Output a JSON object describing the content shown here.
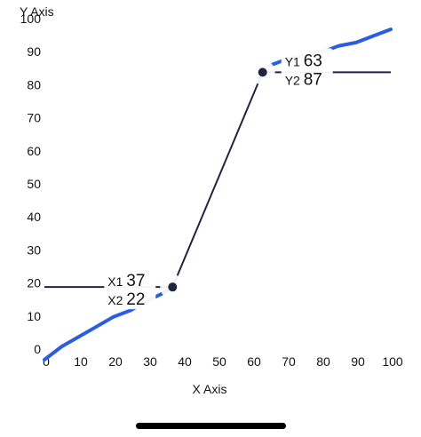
{
  "chart_data": {
    "type": "line",
    "xlabel": "X Axis",
    "ylabel": "Y Axis",
    "xlim": [
      0,
      100
    ],
    "ylim": [
      0,
      100
    ],
    "xticks": [
      "0",
      "10",
      "20",
      "30",
      "40",
      "50",
      "60",
      "70",
      "80",
      "90",
      "100"
    ],
    "yticks": [
      "0",
      "10",
      "20",
      "30",
      "40",
      "50",
      "60",
      "70",
      "80",
      "90",
      "100"
    ],
    "series": [
      {
        "color": "#2a5de0",
        "points": [
          [
            0,
            0
          ],
          [
            5,
            4
          ],
          [
            10,
            7
          ],
          [
            15,
            10
          ],
          [
            20,
            13
          ],
          [
            25,
            15
          ],
          [
            30,
            18
          ],
          [
            34,
            20
          ],
          [
            37,
            22
          ]
        ]
      },
      {
        "color": "#2a5de0",
        "points": [
          [
            65,
            89
          ],
          [
            70,
            91
          ],
          [
            75,
            92
          ],
          [
            80,
            93
          ],
          [
            85,
            95
          ],
          [
            90,
            96
          ],
          [
            95,
            98
          ],
          [
            100,
            100
          ]
        ]
      }
    ],
    "connector": {
      "color": "#1f2540",
      "from": [
        37,
        22
      ],
      "to": [
        63,
        87
      ]
    },
    "markers": [
      {
        "x": 37,
        "y": 22,
        "line_side": "left",
        "line_to_x": 0
      },
      {
        "x": 63,
        "y": 87,
        "line_side": "right",
        "line_to_x": 100
      }
    ],
    "readouts": [
      {
        "name": "x-readout",
        "prefix1": "X1",
        "value1": "37",
        "prefix2": "X2",
        "value2": "22"
      },
      {
        "name": "y-readout",
        "prefix1": "Y1",
        "value1": "63",
        "prefix2": "Y2",
        "value2": "87"
      }
    ]
  }
}
